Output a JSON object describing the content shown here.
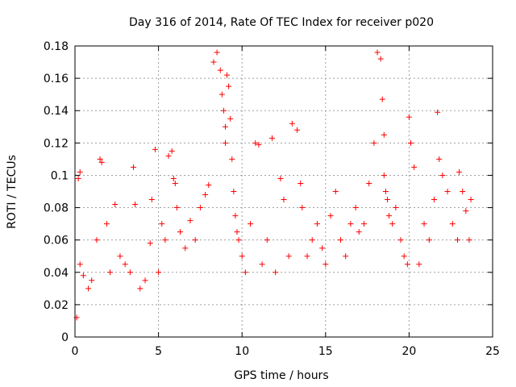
{
  "chart_data": {
    "type": "scatter",
    "title": "Day 316 of 2014, Rate Of TEC Index for receiver p020",
    "xlabel": "GPS time / hours",
    "ylabel": "ROTI / TECUs",
    "xlim": [
      0,
      25
    ],
    "ylim": [
      0,
      0.18
    ],
    "x_ticks": [
      0,
      5,
      10,
      15,
      20,
      25
    ],
    "y_ticks": [
      0,
      0.02,
      0.04,
      0.06,
      0.08,
      0.1,
      0.12,
      0.14,
      0.16,
      0.18
    ],
    "x_tick_labels": [
      "0",
      "5",
      "10",
      "15",
      "20",
      "25"
    ],
    "y_tick_labels": [
      "0",
      "0.02",
      "0.04",
      "0.06",
      "0.08",
      "0.1",
      "0.12",
      "0.14",
      "0.16",
      "0.18"
    ],
    "grid": true,
    "marker": "+",
    "color": "#ff0000",
    "series": [
      {
        "name": "ROTI",
        "x": [
          0.1,
          0.2,
          0.3,
          0.3,
          0.5,
          0.8,
          1.0,
          1.3,
          1.5,
          1.6,
          1.9,
          2.1,
          2.4,
          2.7,
          3.0,
          3.3,
          3.5,
          3.6,
          3.9,
          4.2,
          4.5,
          4.6,
          4.8,
          5.0,
          5.2,
          5.4,
          5.6,
          5.8,
          5.9,
          6.0,
          6.1,
          6.3,
          6.6,
          6.9,
          7.2,
          7.5,
          7.8,
          8.0,
          8.3,
          8.5,
          8.7,
          8.8,
          8.9,
          9.0,
          9.0,
          9.1,
          9.2,
          9.3,
          9.4,
          9.5,
          9.6,
          9.7,
          9.8,
          10.0,
          10.2,
          10.5,
          10.8,
          11.0,
          11.2,
          11.5,
          11.8,
          12.0,
          12.3,
          12.5,
          12.8,
          13.0,
          13.3,
          13.5,
          13.6,
          13.9,
          14.2,
          14.5,
          14.8,
          15.0,
          15.3,
          15.6,
          15.9,
          16.2,
          16.5,
          16.8,
          17.0,
          17.3,
          17.6,
          17.9,
          18.1,
          18.3,
          18.4,
          18.5,
          18.5,
          18.6,
          18.7,
          18.8,
          19.0,
          19.2,
          19.5,
          19.7,
          19.9,
          20.0,
          20.1,
          20.3,
          20.6,
          20.9,
          21.2,
          21.5,
          21.7,
          21.8,
          22.0,
          22.3,
          22.6,
          22.9,
          23.0,
          23.2,
          23.4,
          23.6,
          23.7
        ],
        "y": [
          0.012,
          0.098,
          0.102,
          0.045,
          0.038,
          0.03,
          0.035,
          0.06,
          0.11,
          0.108,
          0.07,
          0.04,
          0.082,
          0.05,
          0.045,
          0.04,
          0.105,
          0.082,
          0.03,
          0.035,
          0.058,
          0.085,
          0.116,
          0.04,
          0.07,
          0.06,
          0.112,
          0.115,
          0.098,
          0.095,
          0.08,
          0.065,
          0.055,
          0.072,
          0.06,
          0.08,
          0.088,
          0.094,
          0.17,
          0.176,
          0.165,
          0.15,
          0.14,
          0.12,
          0.13,
          0.162,
          0.155,
          0.135,
          0.11,
          0.09,
          0.075,
          0.065,
          0.06,
          0.05,
          0.04,
          0.07,
          0.12,
          0.119,
          0.045,
          0.06,
          0.123,
          0.04,
          0.098,
          0.085,
          0.05,
          0.132,
          0.128,
          0.095,
          0.08,
          0.05,
          0.06,
          0.07,
          0.055,
          0.045,
          0.075,
          0.09,
          0.06,
          0.05,
          0.07,
          0.08,
          0.065,
          0.07,
          0.095,
          0.12,
          0.176,
          0.172,
          0.147,
          0.125,
          0.1,
          0.09,
          0.085,
          0.075,
          0.07,
          0.08,
          0.06,
          0.05,
          0.045,
          0.136,
          0.12,
          0.105,
          0.045,
          0.07,
          0.06,
          0.085,
          0.139,
          0.11,
          0.1,
          0.09,
          0.07,
          0.06,
          0.102,
          0.09,
          0.078,
          0.06,
          0.085
        ]
      }
    ]
  }
}
